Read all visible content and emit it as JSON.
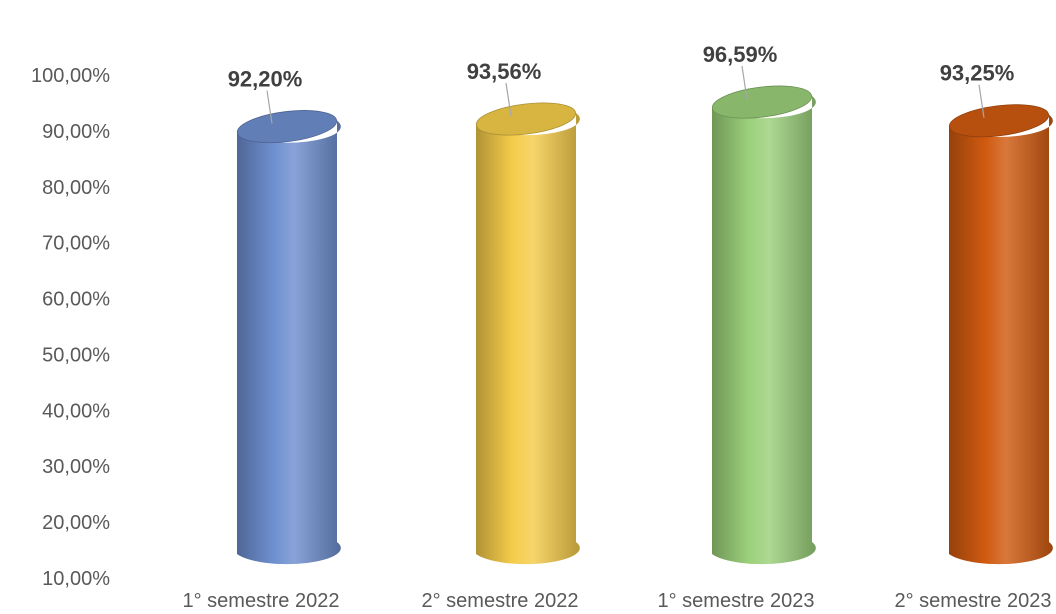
{
  "chart_data": {
    "type": "bar",
    "bar_shape": "cylinder",
    "categories": [
      "1° semestre 2022",
      "2° semestre 2022",
      "1° semestre 2023",
      "2° semestre 2023"
    ],
    "values": [
      92.2,
      93.56,
      96.59,
      93.25
    ],
    "data_labels": [
      "92,20%",
      "93,56%",
      "96,59%",
      "93,25%"
    ],
    "colors": [
      "#6e8fd0",
      "#f5cc4a",
      "#9bd07a",
      "#d05a10"
    ],
    "y_ticks": [
      "10,00%",
      "20,00%",
      "30,00%",
      "40,00%",
      "50,00%",
      "60,00%",
      "70,00%",
      "80,00%",
      "90,00%",
      "100,00%"
    ],
    "ylim": [
      10,
      100
    ],
    "grid": false,
    "legend": "none",
    "title": "",
    "xlabel": "",
    "ylabel": ""
  }
}
